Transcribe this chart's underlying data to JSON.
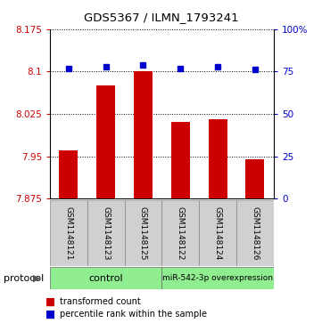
{
  "title": "GDS5367 / ILMN_1793241",
  "samples": [
    "GSM1148121",
    "GSM1148123",
    "GSM1148125",
    "GSM1148122",
    "GSM1148124",
    "GSM1148126"
  ],
  "bar_values": [
    7.96,
    8.075,
    8.1,
    8.01,
    8.015,
    7.945
  ],
  "percentile_values": [
    77,
    78,
    79,
    77,
    78,
    76
  ],
  "y_min": 7.875,
  "y_max": 8.175,
  "y_ticks_left": [
    7.875,
    7.95,
    8.025,
    8.1,
    8.175
  ],
  "y_ticks_right": [
    0,
    25,
    50,
    75,
    100
  ],
  "bar_color": "#cc0000",
  "dot_color": "#0000cc",
  "control_label": "control",
  "treatment_label": "miR-542-3p overexpression",
  "protocol_label": "protocol",
  "legend_bar_label": "transformed count",
  "legend_dot_label": "percentile rank within the sample",
  "control_color": "#90ee90",
  "treatment_color": "#90ee90",
  "gray_color": "#d0d0d0",
  "bar_bottom": 7.875
}
